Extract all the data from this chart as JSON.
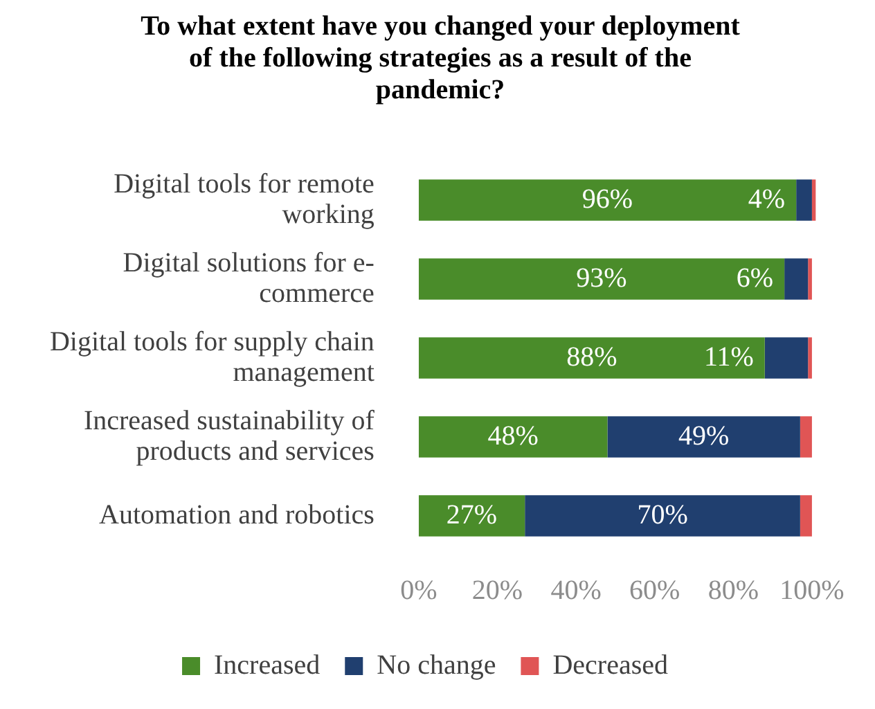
{
  "chart_data": {
    "type": "bar",
    "orientation": "horizontal",
    "stacked": true,
    "title": "To what extent have you changed your deployment of the following strategies as a result of the pandemic?",
    "categories": [
      "Digital tools for remote working",
      "Digital solutions for e-commerce",
      "Digital tools for supply chain management",
      "Increased sustainability of products and services",
      "Automation and robotics"
    ],
    "series": [
      {
        "name": "Increased",
        "color": "#4a8c2a",
        "values": [
          96,
          93,
          88,
          48,
          27
        ],
        "value_labels": [
          "96%",
          "93%",
          "88%",
          "48%",
          "27%"
        ]
      },
      {
        "name": "No change",
        "color": "#203f6f",
        "values": [
          4,
          6,
          11,
          49,
          70
        ],
        "value_labels": [
          "4%",
          "6%",
          "11%",
          "49%",
          "70%"
        ]
      },
      {
        "name": "Decreased",
        "color": "#e05555",
        "values": [
          1,
          1,
          1,
          3,
          3
        ]
      }
    ],
    "xlim": [
      0,
      101
    ],
    "xticks": [
      {
        "value": 0,
        "label": "0%"
      },
      {
        "value": 20,
        "label": "20%"
      },
      {
        "value": 40,
        "label": "40%"
      },
      {
        "value": 60,
        "label": "60%"
      },
      {
        "value": 80,
        "label": "80%"
      },
      {
        "value": 100,
        "label": "100%"
      }
    ],
    "grid": false,
    "legend": "bottom"
  }
}
